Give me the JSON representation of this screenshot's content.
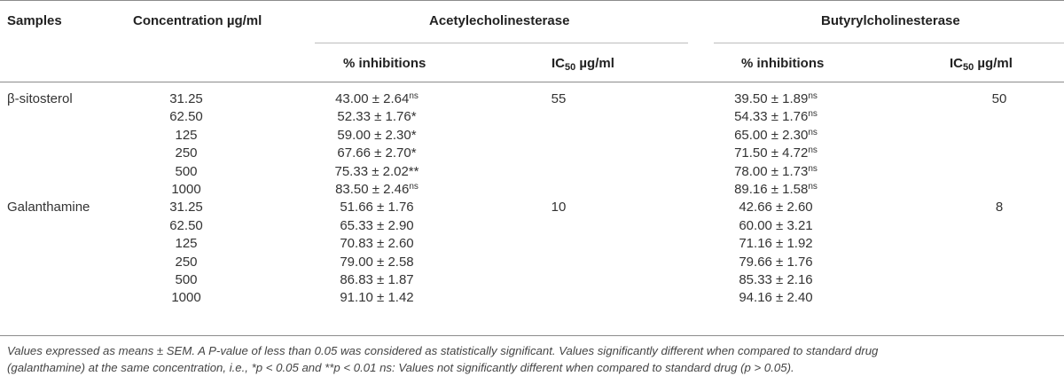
{
  "table": {
    "headers": {
      "samples": "Samples",
      "concentration": "Concentration µg/ml",
      "ache_group": "Acetylecholinesterase",
      "bche_group": "Butyrylcholinesterase",
      "inhibitions": "% inhibitions",
      "ic50_prefix": "IC",
      "ic50_sub": "50",
      "ic50_unit": " µg/ml"
    },
    "groups": [
      {
        "sample": "β-sitosterol",
        "ache_ic50": "55",
        "bche_ic50": "50",
        "rows": [
          {
            "conc": "31.25",
            "ache": "43.00 ± 2.64",
            "ache_sup": "ns",
            "bche": "39.50 ± 1.89",
            "bche_sup": "ns"
          },
          {
            "conc": "62.50",
            "ache": "52.33 ± 1.76*",
            "ache_sup": "",
            "bche": "54.33 ± 1.76",
            "bche_sup": "ns"
          },
          {
            "conc": "125",
            "ache": "59.00 ± 2.30*",
            "ache_sup": "",
            "bche": "65.00 ± 2.30",
            "bche_sup": "ns"
          },
          {
            "conc": "250",
            "ache": "67.66 ± 2.70*",
            "ache_sup": "",
            "bche": "71.50 ± 4.72",
            "bche_sup": "ns"
          },
          {
            "conc": "500",
            "ache": "75.33 ± 2.02**",
            "ache_sup": "",
            "bche": "78.00 ± 1.73",
            "bche_sup": "ns"
          },
          {
            "conc": "1000",
            "ache": "83.50 ± 2.46",
            "ache_sup": "ns",
            "bche": "89.16 ± 1.58",
            "bche_sup": "ns"
          }
        ]
      },
      {
        "sample": "Galanthamine",
        "ache_ic50": "10",
        "bche_ic50": "8",
        "rows": [
          {
            "conc": "31.25",
            "ache": "51.66 ± 1.76",
            "ache_sup": "",
            "bche": "42.66 ± 2.60",
            "bche_sup": ""
          },
          {
            "conc": "62.50",
            "ache": "65.33 ± 2.90",
            "ache_sup": "",
            "bche": "60.00 ± 3.21",
            "bche_sup": ""
          },
          {
            "conc": "125",
            "ache": "70.83 ± 2.60",
            "ache_sup": "",
            "bche": "71.16 ± 1.92",
            "bche_sup": ""
          },
          {
            "conc": "250",
            "ache": "79.00 ± 2.58",
            "ache_sup": "",
            "bche": "79.66 ± 1.76",
            "bche_sup": ""
          },
          {
            "conc": "500",
            "ache": "86.83 ± 1.87",
            "ache_sup": "",
            "bche": "85.33 ± 2.16",
            "bche_sup": ""
          },
          {
            "conc": "1000",
            "ache": "91.10 ± 1.42",
            "ache_sup": "",
            "bche": "94.16 ± 2.40",
            "bche_sup": ""
          }
        ]
      }
    ]
  },
  "footnote": {
    "line1": "Values expressed as means ± SEM. A P-value of less than 0.05 was considered as statistically significant. Values significantly different when compared to standard drug",
    "line2": "(galanthamine) at the same concentration, i.e., *p < 0.05 and **p < 0.01 ns: Values not significantly different when compared to standard drug (p > 0.05)."
  }
}
